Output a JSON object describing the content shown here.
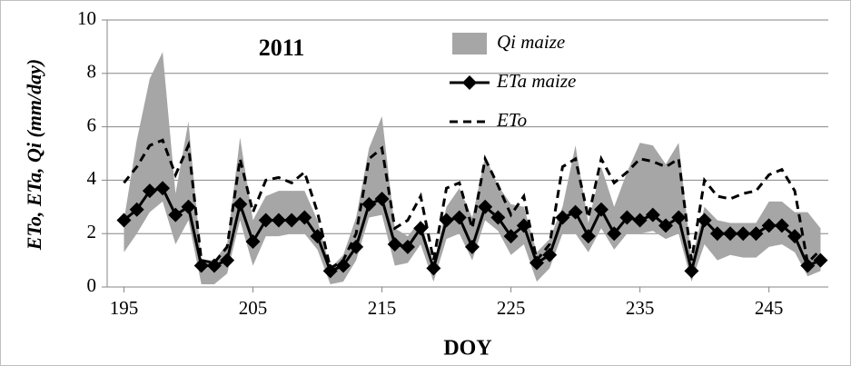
{
  "chart_data": {
    "type": "line",
    "annotation": "2011",
    "xlabel": "DOY",
    "ylabel": "ETo, ETa, Qi (mm/day)",
    "x": [
      195,
      196,
      197,
      198,
      199,
      200,
      201,
      202,
      203,
      204,
      205,
      206,
      207,
      208,
      209,
      210,
      211,
      212,
      213,
      214,
      215,
      216,
      217,
      218,
      219,
      220,
      221,
      222,
      223,
      224,
      225,
      226,
      227,
      228,
      229,
      230,
      231,
      232,
      233,
      234,
      235,
      236,
      237,
      238,
      239,
      240,
      241,
      242,
      243,
      244,
      245,
      246,
      247,
      248,
      249
    ],
    "xlim": [
      193.7,
      249.6
    ],
    "xticks": [
      195,
      205,
      215,
      225,
      235,
      245
    ],
    "ylim": [
      0,
      10
    ],
    "yticks": [
      0,
      2,
      4,
      6,
      8,
      10
    ],
    "grid": true,
    "legend": "top",
    "series": [
      {
        "name": "Qi maize",
        "color": "#a6a6a6",
        "style": "band",
        "high": [
          2.5,
          5.5,
          7.8,
          8.8,
          3.5,
          6.2,
          1.0,
          1.0,
          1.6,
          5.6,
          2.5,
          3.4,
          3.6,
          3.6,
          3.6,
          2.5,
          0.7,
          1.2,
          2.6,
          5.2,
          6.4,
          2.2,
          1.9,
          2.5,
          0.8,
          3.0,
          3.7,
          2.6,
          4.9,
          3.8,
          3.1,
          3.0,
          1.3,
          1.8,
          3.0,
          5.3,
          2.4,
          4.5,
          3.0,
          4.3,
          5.4,
          5.3,
          4.6,
          5.4,
          1.0,
          3.0,
          2.5,
          2.4,
          2.4,
          2.4,
          3.2,
          3.2,
          2.8,
          2.8,
          2.2
        ],
        "low": [
          1.3,
          2.0,
          2.8,
          3.2,
          1.6,
          2.5,
          0.1,
          0.1,
          0.5,
          2.5,
          0.8,
          1.9,
          1.9,
          2.0,
          2.0,
          1.4,
          0.1,
          0.2,
          1.0,
          2.6,
          2.7,
          0.8,
          0.9,
          1.6,
          0.2,
          1.8,
          2.0,
          1.0,
          2.5,
          2.1,
          1.2,
          1.6,
          0.2,
          0.7,
          2.0,
          2.0,
          1.3,
          2.2,
          1.4,
          2.0,
          2.0,
          2.1,
          1.8,
          2.0,
          0.2,
          1.6,
          1.0,
          1.2,
          1.1,
          1.1,
          1.5,
          1.6,
          1.3,
          0.4,
          0.6
        ]
      },
      {
        "name": "ETa maize",
        "color": "#000000",
        "style": "solid-diamond",
        "values": [
          2.5,
          2.9,
          3.6,
          3.7,
          2.7,
          3.0,
          0.8,
          0.8,
          1.0,
          3.1,
          1.7,
          2.5,
          2.5,
          2.5,
          2.6,
          1.9,
          0.6,
          0.8,
          1.5,
          3.1,
          3.3,
          1.6,
          1.5,
          2.2,
          0.7,
          2.5,
          2.6,
          1.5,
          3.0,
          2.6,
          1.9,
          2.3,
          0.9,
          1.2,
          2.6,
          2.8,
          1.9,
          2.9,
          2.0,
          2.6,
          2.5,
          2.7,
          2.3,
          2.6,
          0.6,
          2.5,
          2.0,
          2.0,
          2.0,
          2.0,
          2.3,
          2.3,
          1.9,
          0.8,
          1.0
        ]
      },
      {
        "name": "ETo",
        "color": "#000000",
        "style": "dashed",
        "values": [
          3.9,
          4.5,
          5.3,
          5.5,
          4.2,
          5.3,
          1.0,
          0.9,
          1.5,
          4.8,
          2.8,
          4.0,
          4.1,
          3.9,
          4.3,
          2.8,
          0.7,
          1.0,
          2.0,
          4.8,
          5.2,
          2.2,
          2.5,
          3.4,
          1.0,
          3.7,
          3.9,
          2.2,
          4.8,
          3.8,
          2.7,
          3.4,
          1.0,
          1.6,
          4.5,
          4.8,
          2.6,
          4.8,
          3.9,
          4.3,
          4.8,
          4.7,
          4.5,
          4.8,
          1.0,
          4.0,
          3.4,
          3.3,
          3.5,
          3.6,
          4.2,
          4.4,
          3.6,
          0.9,
          1.4
        ]
      }
    ]
  }
}
